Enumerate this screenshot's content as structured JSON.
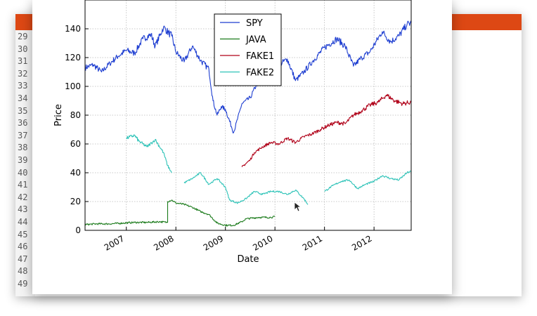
{
  "editor": {
    "line_numbers": [
      "29",
      "30",
      "31",
      "32",
      "33",
      "34",
      "35",
      "36",
      "37",
      "38",
      "39",
      "40",
      "41",
      "42",
      "43",
      "44",
      "45",
      "46",
      "47",
      "48",
      "49"
    ],
    "accent_color": "#dd4814"
  },
  "chart_data": {
    "type": "line",
    "title": "",
    "xlabel": "Date",
    "ylabel": "Price",
    "x_range": [
      "2006-03",
      "2012-10"
    ],
    "ylim": [
      0,
      160
    ],
    "x_ticks": [
      "2007",
      "2008",
      "2009",
      "2010",
      "2011",
      "2012"
    ],
    "y_ticks": [
      "0",
      "20",
      "40",
      "60",
      "80",
      "100",
      "120",
      "140"
    ],
    "grid": true,
    "legend_position": "top-center",
    "series": [
      {
        "name": "SPY",
        "color": "#1f3fd1",
        "segments": [
          [
            [
              "2006-03",
              113
            ],
            [
              "2006-05",
              115
            ],
            [
              "2006-07",
              110
            ],
            [
              "2006-09",
              116
            ],
            [
              "2006-11",
              121
            ],
            [
              "2007-01",
              125
            ],
            [
              "2007-03",
              123
            ],
            [
              "2007-05",
              133
            ],
            [
              "2007-07",
              136
            ],
            [
              "2007-08",
              128
            ],
            [
              "2007-10",
              141
            ],
            [
              "2007-12",
              135
            ],
            [
              "2008-01",
              124
            ],
            [
              "2008-03",
              117
            ],
            [
              "2008-05",
              128
            ],
            [
              "2008-07",
              118
            ],
            [
              "2008-09",
              112
            ],
            [
              "2008-10",
              90
            ],
            [
              "2008-11",
              80
            ],
            [
              "2008-12",
              86
            ],
            [
              "2009-01",
              84
            ],
            [
              "2009-03",
              68
            ],
            [
              "2009-05",
              88
            ],
            [
              "2009-07",
              92
            ],
            [
              "2009-09",
              104
            ],
            [
              "2009-11",
              108
            ],
            [
              "2010-01",
              113
            ],
            [
              "2010-04",
              119
            ],
            [
              "2010-06",
              104
            ],
            [
              "2010-08",
              110
            ],
            [
              "2010-10",
              117
            ],
            [
              "2011-01",
              127
            ],
            [
              "2011-04",
              133
            ],
            [
              "2011-06",
              128
            ],
            [
              "2011-08",
              114
            ],
            [
              "2011-10",
              120
            ],
            [
              "2011-12",
              124
            ],
            [
              "2012-03",
              138
            ],
            [
              "2012-05",
              131
            ],
            [
              "2012-07",
              135
            ],
            [
              "2012-09",
              143
            ],
            [
              "2012-10",
              144
            ]
          ]
        ]
      },
      {
        "name": "JAVA",
        "color": "#1a7a1a",
        "segments": [
          [
            [
              "2006-03",
              4
            ],
            [
              "2006-06",
              4.5
            ],
            [
              "2006-09",
              4.5
            ],
            [
              "2006-12",
              5
            ],
            [
              "2007-03",
              5.5
            ],
            [
              "2007-06",
              5.5
            ],
            [
              "2007-09",
              6
            ],
            [
              "2007-11",
              5.5
            ],
            [
              "2007-11",
              20
            ],
            [
              "2007-12",
              21
            ],
            [
              "2008-01",
              19
            ],
            [
              "2008-03",
              18
            ],
            [
              "2008-05",
              16
            ],
            [
              "2008-07",
              13
            ],
            [
              "2008-09",
              11
            ],
            [
              "2008-11",
              5
            ],
            [
              "2009-01",
              3.5
            ],
            [
              "2009-03",
              3.5
            ],
            [
              "2009-05",
              6
            ],
            [
              "2009-06",
              8
            ],
            [
              "2009-09",
              9
            ],
            [
              "2009-12",
              9
            ],
            [
              "2010-01",
              9.5
            ]
          ]
        ]
      },
      {
        "name": "FAKE1",
        "color": "#b00018",
        "segments": [
          [
            [
              "2009-05",
              44
            ],
            [
              "2009-07",
              49
            ],
            [
              "2009-08",
              54
            ],
            [
              "2009-10",
              58
            ],
            [
              "2009-12",
              61
            ],
            [
              "2010-02",
              60
            ],
            [
              "2010-04",
              64
            ],
            [
              "2010-06",
              61
            ],
            [
              "2010-08",
              65
            ],
            [
              "2010-10",
              67
            ],
            [
              "2010-12",
              70
            ],
            [
              "2011-02",
              73
            ],
            [
              "2011-04",
              75
            ],
            [
              "2011-06",
              74
            ],
            [
              "2011-08",
              80
            ],
            [
              "2011-10",
              83
            ],
            [
              "2011-12",
              87
            ],
            [
              "2012-02",
              89
            ],
            [
              "2012-04",
              94
            ],
            [
              "2012-06",
              90
            ],
            [
              "2012-08",
              88
            ],
            [
              "2012-10",
              89
            ]
          ]
        ]
      },
      {
        "name": "FAKE2",
        "color": "#2ec3b8",
        "segments": [
          [
            [
              "2007-01",
              64
            ],
            [
              "2007-03",
              66
            ],
            [
              "2007-04",
              62
            ],
            [
              "2007-06",
              58
            ],
            [
              "2007-08",
              63
            ],
            [
              "2007-10",
              54
            ],
            [
              "2007-11",
              45
            ],
            [
              "2007-12",
              40
            ]
          ],
          [
            [
              "2008-03",
              33
            ],
            [
              "2008-05",
              36
            ],
            [
              "2008-07",
              40
            ],
            [
              "2008-09",
              32
            ],
            [
              "2008-11",
              36
            ],
            [
              "2009-01",
              30
            ],
            [
              "2009-02",
              21
            ],
            [
              "2009-04",
              19
            ],
            [
              "2009-06",
              22
            ],
            [
              "2009-08",
              27
            ],
            [
              "2009-10",
              25
            ],
            [
              "2009-12",
              27
            ],
            [
              "2010-02",
              27
            ],
            [
              "2010-04",
              25
            ],
            [
              "2010-06",
              28
            ],
            [
              "2010-08",
              22
            ],
            [
              "2010-09",
              18
            ]
          ],
          [
            [
              "2011-01",
              27
            ],
            [
              "2011-03",
              31
            ],
            [
              "2011-05",
              34
            ],
            [
              "2011-07",
              35
            ],
            [
              "2011-09",
              29
            ],
            [
              "2011-11",
              32
            ],
            [
              "2012-01",
              34
            ],
            [
              "2012-03",
              38
            ],
            [
              "2012-05",
              36
            ],
            [
              "2012-07",
              35
            ],
            [
              "2012-09",
              40
            ],
            [
              "2012-10",
              41
            ]
          ]
        ]
      }
    ]
  }
}
